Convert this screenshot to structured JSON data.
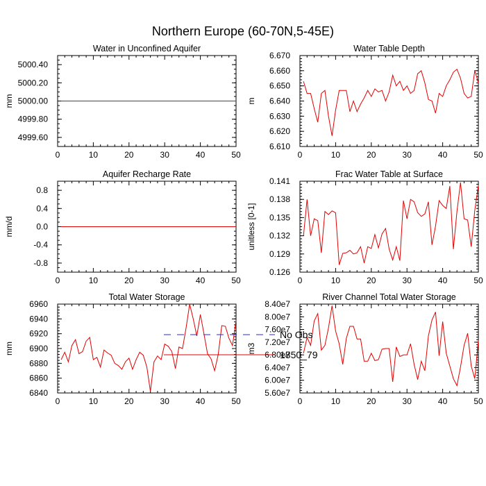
{
  "figure": {
    "title": "Northern Europe (60-70N,5-45E)"
  },
  "legend": {
    "placement": "bottom-center",
    "entries": [
      {
        "label": "No Obs",
        "color": "#2a2ad8",
        "style": "dashed"
      },
      {
        "label": "1850_79",
        "color": "#e00000",
        "style": "solid"
      }
    ]
  },
  "chart_data": [
    {
      "type": "line",
      "title": "Water in Unconfined Aquifer",
      "ylabel": "mm",
      "xlim": [
        0,
        50
      ],
      "ylim": [
        4999.5,
        5000.5
      ],
      "xticks": [
        0,
        10,
        20,
        30,
        40,
        50
      ],
      "xtick_labels": [
        "0",
        "10",
        "20",
        "30",
        "40",
        "50"
      ],
      "yticks": [
        4999.6,
        4999.8,
        5000.0,
        5000.2,
        5000.4
      ],
      "ytick_labels": [
        "4999.60",
        "4999.80",
        "5000.00",
        "5000.20",
        "5000.40"
      ],
      "ymin_minor": 0.05,
      "series": [
        {
          "name": "1850_79",
          "color": "#e00000",
          "x": [
            1,
            2,
            3,
            4,
            5,
            6,
            7,
            8,
            9,
            10,
            11,
            12,
            13,
            14,
            15,
            16,
            17,
            18,
            19,
            20,
            21,
            22,
            23,
            24,
            25,
            26,
            27,
            28,
            29,
            30,
            31,
            32,
            33,
            34,
            35,
            36,
            37,
            38,
            39,
            40,
            41,
            42,
            43,
            44,
            45,
            46,
            47,
            48,
            49,
            50
          ],
          "values": [
            5000,
            5000,
            5000,
            5000,
            5000,
            5000,
            5000,
            5000,
            5000,
            5000,
            5000,
            5000,
            5000,
            5000,
            5000,
            5000,
            5000,
            5000,
            5000,
            5000,
            5000,
            5000,
            5000,
            5000,
            5000,
            5000,
            5000,
            5000,
            5000,
            5000,
            5000,
            5000,
            5000,
            5000,
            5000,
            5000,
            5000,
            5000,
            5000,
            5000,
            5000,
            5000,
            5000,
            5000,
            5000,
            5000,
            5000,
            5000,
            5000,
            5000
          ]
        }
      ]
    },
    {
      "type": "line",
      "title": "Water Table Depth",
      "ylabel": "m",
      "xlim": [
        0,
        50
      ],
      "ylim": [
        6.61,
        6.67
      ],
      "xticks": [
        0,
        10,
        20,
        30,
        40,
        50
      ],
      "xtick_labels": [
        "0",
        "10",
        "20",
        "30",
        "40",
        "50"
      ],
      "yticks": [
        6.61,
        6.62,
        6.63,
        6.64,
        6.65,
        6.66,
        6.67
      ],
      "ytick_labels": [
        "6.610",
        "6.620",
        "6.630",
        "6.640",
        "6.650",
        "6.660",
        "6.670"
      ],
      "ymin_minor": 0.002,
      "series": [
        {
          "name": "1850_79",
          "color": "#e00000",
          "x": [
            1,
            2,
            3,
            4,
            5,
            6,
            7,
            8,
            9,
            10,
            11,
            12,
            13,
            14,
            15,
            16,
            17,
            18,
            19,
            20,
            21,
            22,
            23,
            24,
            25,
            26,
            27,
            28,
            29,
            30,
            31,
            32,
            33,
            34,
            35,
            36,
            37,
            38,
            39,
            40,
            41,
            42,
            43,
            44,
            45,
            46,
            47,
            48,
            49,
            50
          ],
          "values": [
            6.653,
            6.645,
            6.645,
            6.635,
            6.626,
            6.645,
            6.647,
            6.63,
            6.617,
            6.634,
            6.647,
            6.647,
            6.647,
            6.633,
            6.64,
            6.633,
            6.638,
            6.642,
            6.647,
            6.643,
            6.648,
            6.646,
            6.647,
            6.64,
            6.646,
            6.657,
            6.65,
            6.653,
            6.647,
            6.65,
            6.645,
            6.647,
            6.658,
            6.66,
            6.652,
            6.641,
            6.64,
            6.632,
            6.645,
            6.643,
            6.65,
            6.654,
            6.659,
            6.661,
            6.655,
            6.645,
            6.642,
            6.643,
            6.66,
            6.652
          ]
        }
      ]
    },
    {
      "type": "line",
      "title": "Aquifer Recharge Rate",
      "ylabel": "mm/d",
      "xlim": [
        0,
        50
      ],
      "ylim": [
        -1.0,
        1.0
      ],
      "xticks": [
        0,
        10,
        20,
        30,
        40,
        50
      ],
      "xtick_labels": [
        "0",
        "10",
        "20",
        "30",
        "40",
        "50"
      ],
      "yticks": [
        -0.8,
        -0.4,
        0.0,
        0.4,
        0.8
      ],
      "ytick_labels": [
        "-0.8",
        "-0.4",
        "0.0",
        "0.4",
        "0.8"
      ],
      "ymin_minor": 0.1,
      "series": [
        {
          "name": "1850_79",
          "color": "#e00000",
          "x": [
            1,
            2,
            3,
            4,
            5,
            6,
            7,
            8,
            9,
            10,
            11,
            12,
            13,
            14,
            15,
            16,
            17,
            18,
            19,
            20,
            21,
            22,
            23,
            24,
            25,
            26,
            27,
            28,
            29,
            30,
            31,
            32,
            33,
            34,
            35,
            36,
            37,
            38,
            39,
            40,
            41,
            42,
            43,
            44,
            45,
            46,
            47,
            48,
            49,
            50
          ],
          "values": [
            0,
            0,
            0,
            0,
            0,
            0,
            0,
            0,
            0,
            0,
            0,
            0,
            0,
            0,
            0,
            0,
            0,
            0,
            0,
            0,
            0,
            0,
            0,
            0,
            0,
            0,
            0,
            0,
            0,
            0,
            0,
            0,
            0,
            0,
            0,
            0,
            0,
            0,
            0,
            0,
            0,
            0,
            0,
            0,
            0,
            0,
            0,
            0,
            0,
            0
          ]
        }
      ]
    },
    {
      "type": "line",
      "title": "Frac Water Table at Surface",
      "ylabel": "unitless [0-1]",
      "xlim": [
        0,
        50
      ],
      "ylim": [
        0.126,
        0.141
      ],
      "xticks": [
        0,
        10,
        20,
        30,
        40,
        50
      ],
      "xtick_labels": [
        "0",
        "10",
        "20",
        "30",
        "40",
        "50"
      ],
      "yticks": [
        0.126,
        0.129,
        0.132,
        0.135,
        0.138,
        0.141
      ],
      "ytick_labels": [
        "0.126",
        "0.129",
        "0.132",
        "0.135",
        "0.138",
        "0.141"
      ],
      "ymin_minor": 0.0005,
      "series": [
        {
          "name": "1850_79",
          "color": "#e00000",
          "x": [
            1,
            2,
            3,
            4,
            5,
            6,
            7,
            8,
            9,
            10,
            11,
            12,
            13,
            14,
            15,
            16,
            17,
            18,
            19,
            20,
            21,
            22,
            23,
            24,
            25,
            26,
            27,
            28,
            29,
            30,
            31,
            32,
            33,
            34,
            35,
            36,
            37,
            38,
            39,
            40,
            41,
            42,
            43,
            44,
            45,
            46,
            47,
            48,
            49,
            50
          ],
          "values": [
            0.132,
            0.138,
            0.132,
            0.1348,
            0.1345,
            0.1292,
            0.136,
            0.1355,
            0.1361,
            0.1358,
            0.1272,
            0.1291,
            0.1292,
            0.1296,
            0.129,
            0.1292,
            0.1302,
            0.1275,
            0.1302,
            0.1299,
            0.1322,
            0.13,
            0.1323,
            0.1332,
            0.1298,
            0.128,
            0.1302,
            0.1279,
            0.1378,
            0.1348,
            0.138,
            0.1376,
            0.1358,
            0.1352,
            0.1356,
            0.1376,
            0.1305,
            0.1336,
            0.1378,
            0.137,
            0.1365,
            0.1402,
            0.1298,
            0.136,
            0.1408,
            0.1348,
            0.1346,
            0.1302,
            0.1362,
            0.1403
          ]
        }
      ]
    },
    {
      "type": "line",
      "title": "Total Water Storage",
      "ylabel": "mm",
      "xlim": [
        0,
        50
      ],
      "ylim": [
        6840,
        6960
      ],
      "xticks": [
        0,
        10,
        20,
        30,
        40,
        50
      ],
      "xtick_labels": [
        "0",
        "10",
        "20",
        "30",
        "40",
        "50"
      ],
      "yticks": [
        6840,
        6860,
        6880,
        6900,
        6920,
        6940,
        6960
      ],
      "ytick_labels": [
        "6840",
        "6860",
        "6880",
        "6900",
        "6920",
        "6940",
        "6960"
      ],
      "ymin_minor": 4,
      "series": [
        {
          "name": "1850_79",
          "color": "#e00000",
          "x": [
            1,
            2,
            3,
            4,
            5,
            6,
            7,
            8,
            9,
            10,
            11,
            12,
            13,
            14,
            15,
            16,
            17,
            18,
            19,
            20,
            21,
            22,
            23,
            24,
            25,
            26,
            27,
            28,
            29,
            30,
            31,
            32,
            33,
            34,
            35,
            36,
            37,
            38,
            39,
            40,
            41,
            42,
            43,
            44,
            45,
            46,
            47,
            48,
            49,
            50
          ],
          "values": [
            6885,
            6895,
            6882,
            6904,
            6912,
            6893,
            6896,
            6910,
            6915,
            6885,
            6888,
            6875,
            6898,
            6894,
            6891,
            6880,
            6877,
            6872,
            6882,
            6887,
            6872,
            6885,
            6895,
            6891,
            6875,
            6842,
            6882,
            6890,
            6885,
            6906,
            6903,
            6896,
            6873,
            6902,
            6900,
            6928,
            6960,
            6940,
            6917,
            6946,
            6920,
            6893,
            6886,
            6870,
            6892,
            6931,
            6930,
            6914,
            6904,
            6938
          ]
        }
      ]
    },
    {
      "type": "line",
      "title": "River Channel Total Water Storage",
      "ylabel": "m3",
      "xlim": [
        0,
        50
      ],
      "ylim": [
        56000000,
        84000000
      ],
      "xticks": [
        0,
        10,
        20,
        30,
        40,
        50
      ],
      "xtick_labels": [
        "0",
        "10",
        "20",
        "30",
        "40",
        "50"
      ],
      "yticks": [
        56000000,
        60000000,
        64000000,
        68000000,
        72000000,
        76000000,
        80000000,
        84000000
      ],
      "ytick_labels": [
        "5.60e7",
        "6.00e7",
        "6.40e7",
        "6.80e7",
        "7.20e7",
        "7.60e7",
        "8.00e7",
        "8.40e7"
      ],
      "ymin_minor": 800000,
      "series": [
        {
          "name": "1850_79",
          "color": "#e00000",
          "x": [
            1,
            2,
            3,
            4,
            5,
            6,
            7,
            8,
            9,
            10,
            11,
            12,
            13,
            14,
            15,
            16,
            17,
            18,
            19,
            20,
            21,
            22,
            23,
            24,
            25,
            26,
            27,
            28,
            29,
            30,
            31,
            32,
            33,
            34,
            35,
            36,
            37,
            38,
            39,
            40,
            41,
            42,
            43,
            44,
            45,
            46,
            47,
            48,
            49,
            50
          ],
          "values": [
            68500000,
            73500000,
            71000000,
            78700000,
            81000000,
            69500000,
            71000000,
            76500000,
            83500000,
            75500000,
            71500000,
            65000000,
            73200000,
            77000000,
            77000000,
            73000000,
            73000000,
            66000000,
            66000000,
            68500000,
            66200000,
            66500000,
            69800000,
            70000000,
            70000000,
            59500000,
            70500000,
            67500000,
            68000000,
            68000000,
            71500000,
            65000000,
            60200000,
            66000000,
            63000000,
            74000000,
            79000000,
            81500000,
            67700000,
            78500000,
            68500000,
            64500000,
            60500000,
            58300000,
            64200000,
            71000000,
            74800000,
            64500000,
            60500000,
            72500000
          ]
        }
      ]
    }
  ]
}
